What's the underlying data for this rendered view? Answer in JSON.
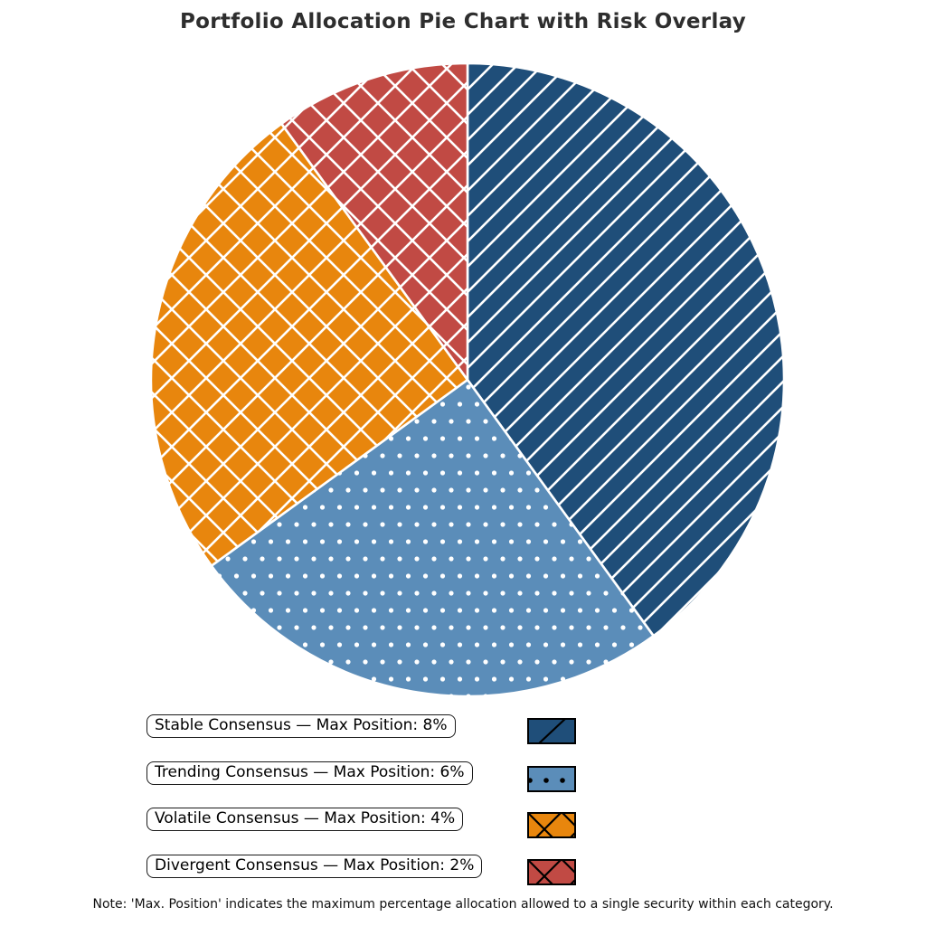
{
  "title": "Portfolio Allocation Pie Chart with Risk Overlay",
  "note": "Note: 'Max. Position' indicates the maximum percentage allocation allowed to a single security within each category.",
  "colors": {
    "background": "#FFFFFF",
    "title_text": "#2E2E2E",
    "pie_hatch": "#FFFFFF",
    "legend_hatch": "#000000",
    "legend_box_border": "#1A1A1A"
  },
  "chart_data": {
    "type": "pie",
    "title": "Portfolio Allocation Pie Chart with Risk Overlay",
    "start_angle_deg": 90,
    "direction": "clockwise",
    "slices": [
      {
        "name": "Stable Consensus",
        "share_pct": 40,
        "max_position_pct": 8,
        "color": "#1F4E79",
        "hatch": "diagonal-lines"
      },
      {
        "name": "Trending Consensus",
        "share_pct": 25,
        "max_position_pct": 6,
        "color": "#5B8DB9",
        "hatch": "dots"
      },
      {
        "name": "Volatile Consensus",
        "share_pct": 25,
        "max_position_pct": 4,
        "color": "#E8860D",
        "hatch": "crosshatch"
      },
      {
        "name": "Divergent Consensus",
        "share_pct": 10,
        "max_position_pct": 2,
        "color": "#C14A44",
        "hatch": "crosshatch"
      }
    ],
    "legend_entries": [
      "Stable Consensus — Max Position: 8%",
      "Trending Consensus — Max Position: 6%",
      "Volatile Consensus — Max Position: 4%",
      "Divergent Consensus — Max Position: 2%"
    ],
    "legend_position": "below chart, labels left / swatches right",
    "grid": false
  }
}
